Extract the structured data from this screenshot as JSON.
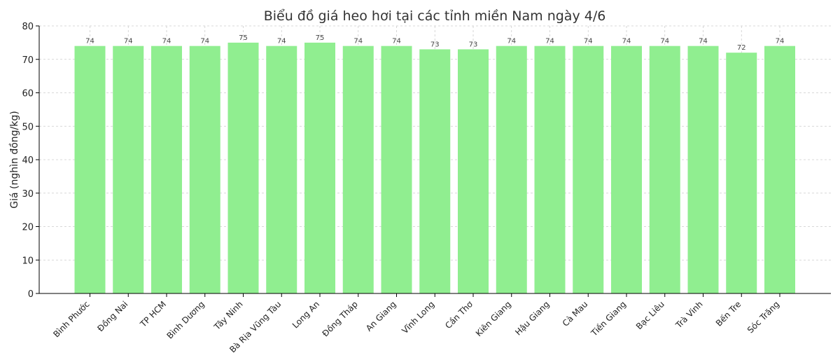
{
  "chart_data": {
    "type": "bar",
    "title": "Biểu đồ giá heo hơi tại các tỉnh miền Nam ngày 4/6",
    "xlabel": "",
    "ylabel": "Giá (nghìn đồng/kg)",
    "ylim": [
      0,
      80
    ],
    "yticks": [
      "0",
      "10",
      "20",
      "30",
      "40",
      "50",
      "60",
      "70",
      "80"
    ],
    "grid": true,
    "bar_color": "#90ee90",
    "categories": [
      "Bình Phước",
      "Đồng Nai",
      "TP HCM",
      "Bình Dương",
      "Tây Ninh",
      "Bà Rịa Vũng Tàu",
      "Long An",
      "Đồng Tháp",
      "An Giang",
      "Vĩnh Long",
      "Cần Thơ",
      "Kiên Giang",
      "Hậu Giang",
      "Cà Mau",
      "Tiền Giang",
      "Bạc Liêu",
      "Trà Vinh",
      "Bến Tre",
      "Sóc Trăng"
    ],
    "values": [
      74,
      74,
      74,
      74,
      75,
      74,
      75,
      74,
      74,
      73,
      73,
      74,
      74,
      74,
      74,
      74,
      74,
      72,
      74
    ]
  }
}
